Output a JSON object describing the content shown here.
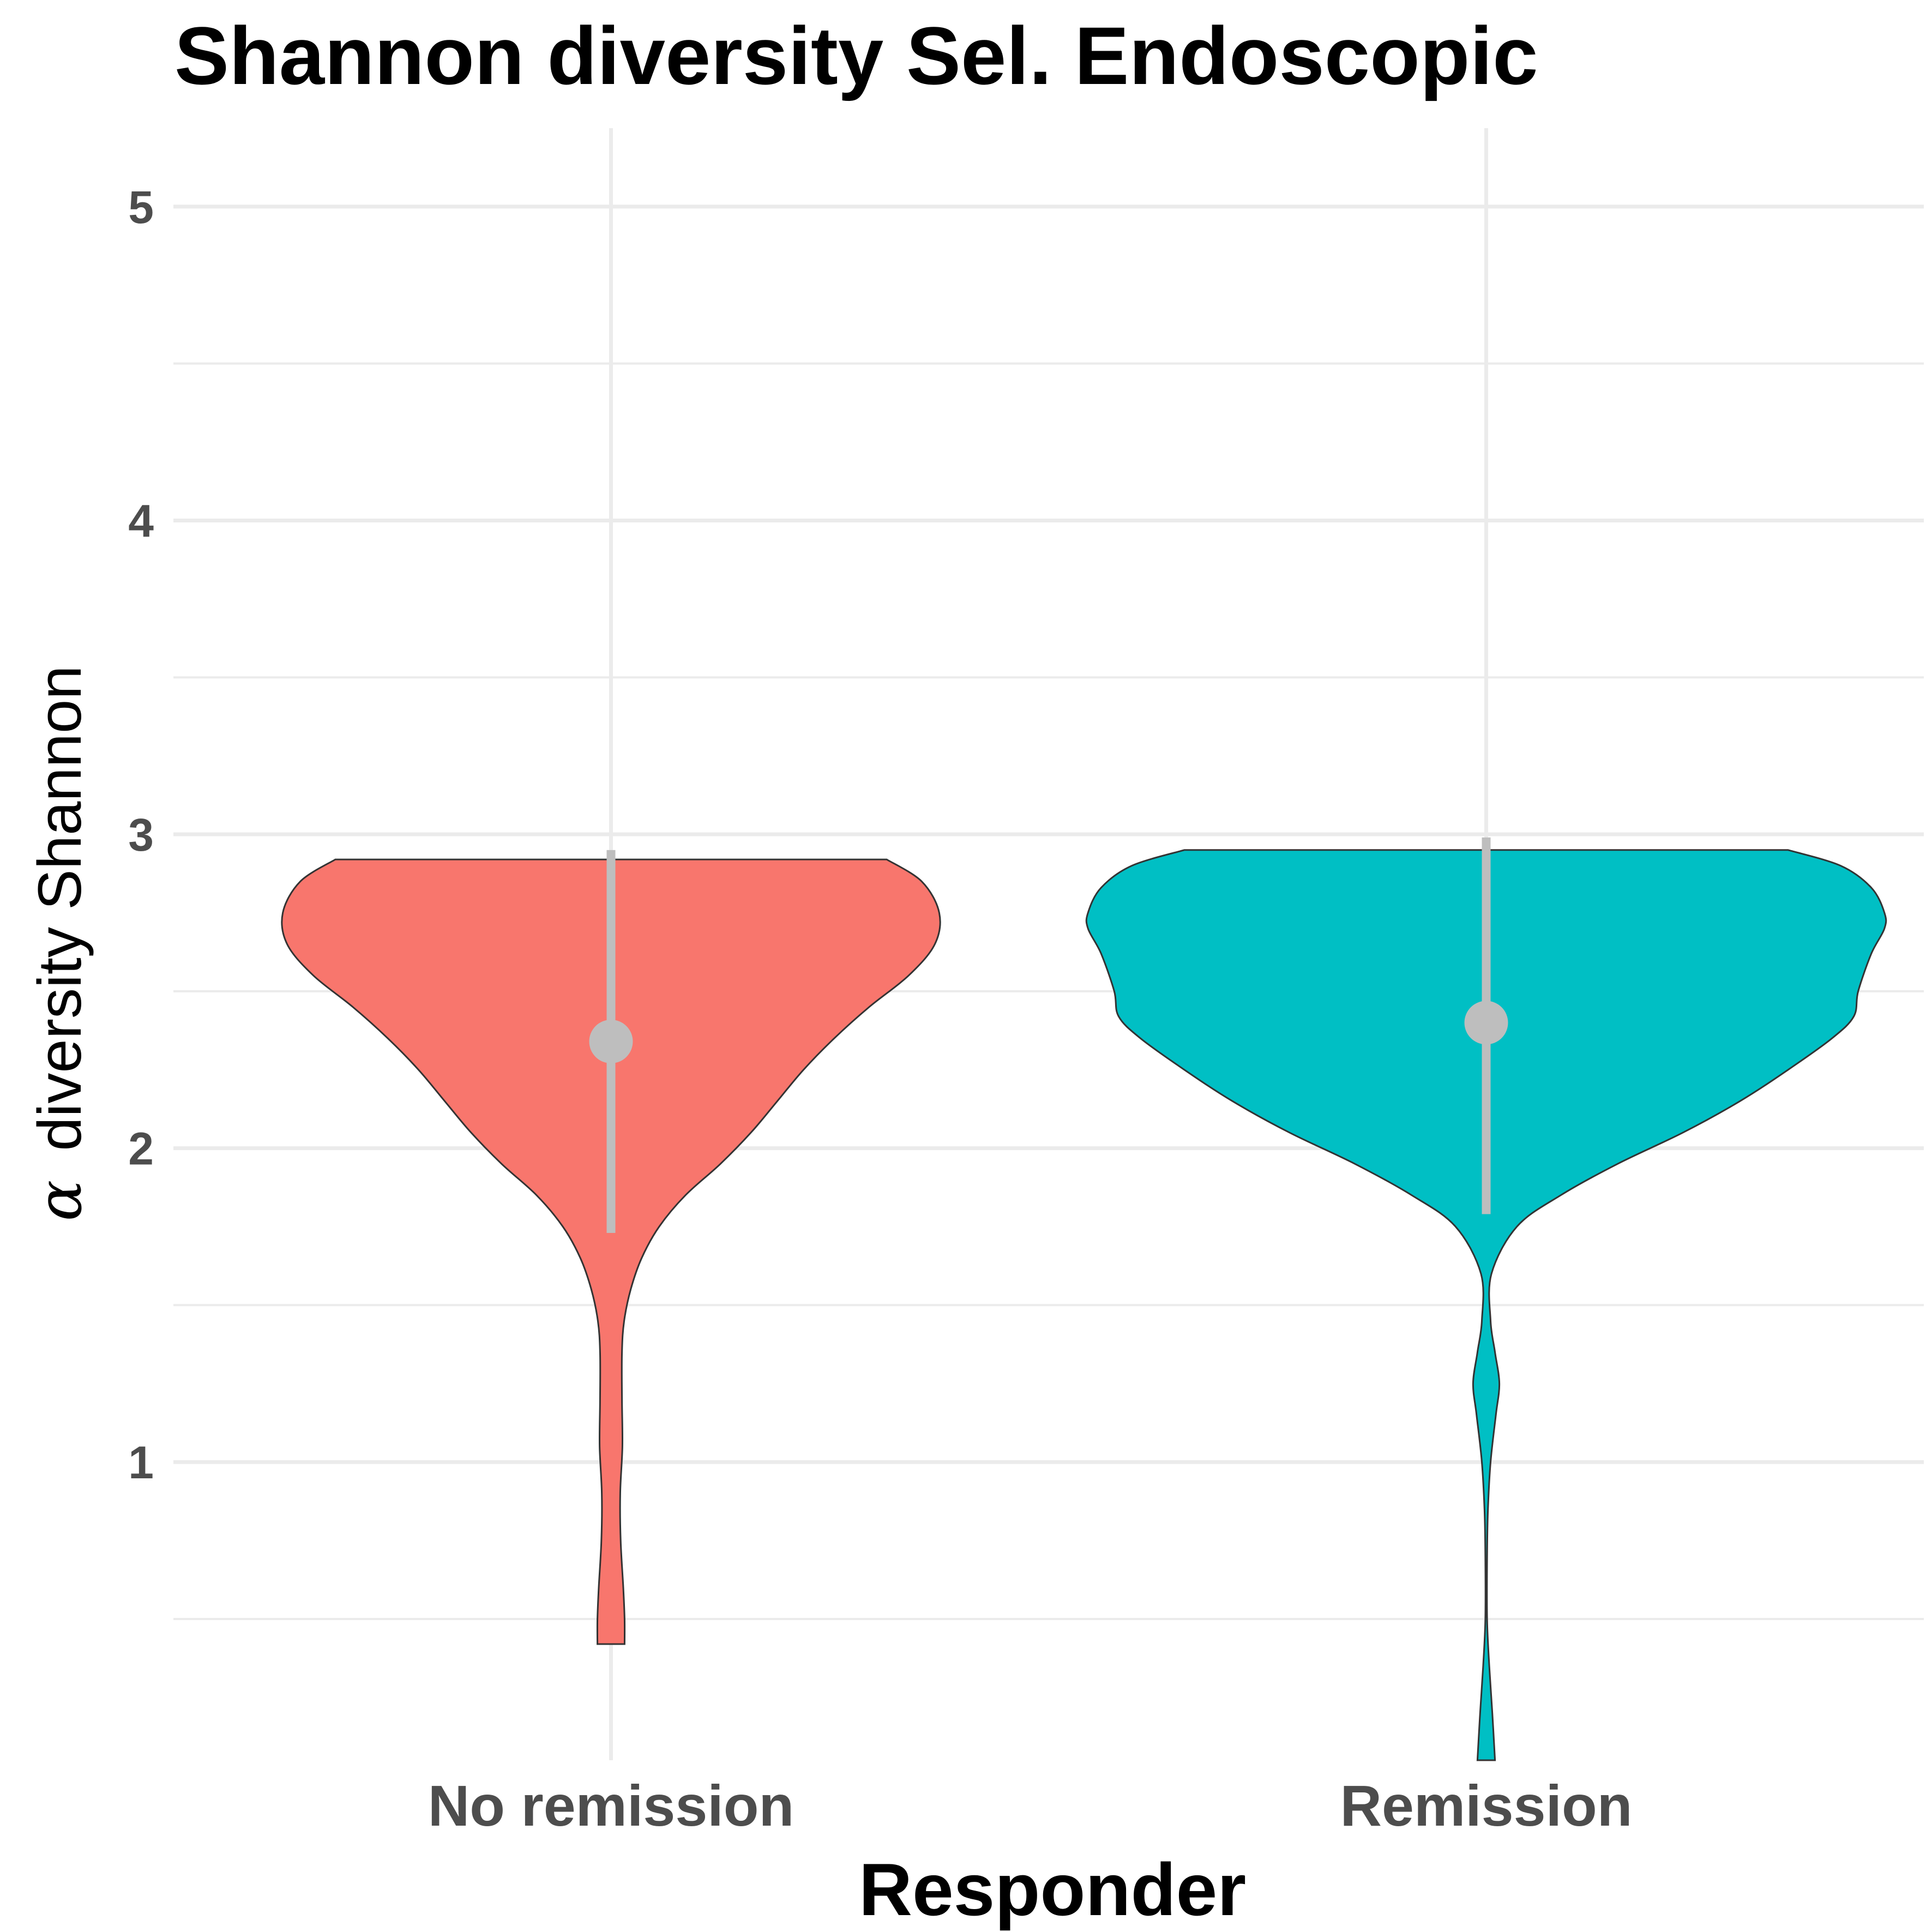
{
  "chart_data": {
    "type": "violin",
    "title": "Shannon diversity Sel. Endoscopic",
    "xlabel": "Responder",
    "ylabel_symbol": "α",
    "ylabel_text": "diversity Shannon",
    "categories": [
      "No remission",
      "Remission"
    ],
    "colors": [
      "#F8766D",
      "#00BFC4"
    ],
    "summary_color": "#BEBEBE",
    "grid": true,
    "ylim": [
      0.05,
      5.25
    ],
    "y_ticks": [
      1,
      2,
      3,
      4,
      5
    ],
    "y_tick_labels": [
      "1",
      "2",
      "3",
      "4",
      "5"
    ],
    "series": [
      {
        "values_min": 0.42,
        "values_max": 2.92,
        "mean": 2.34,
        "lower": 1.73,
        "upper": 2.95,
        "density_profile": [
          {
            "y": 2.92,
            "w": 0.63
          },
          {
            "y": 2.85,
            "w": 0.71
          },
          {
            "y": 2.75,
            "w": 0.75
          },
          {
            "y": 2.65,
            "w": 0.74
          },
          {
            "y": 2.55,
            "w": 0.68
          },
          {
            "y": 2.45,
            "w": 0.59
          },
          {
            "y": 2.35,
            "w": 0.51
          },
          {
            "y": 2.25,
            "w": 0.44
          },
          {
            "y": 2.15,
            "w": 0.38
          },
          {
            "y": 2.05,
            "w": 0.32
          },
          {
            "y": 1.95,
            "w": 0.25
          },
          {
            "y": 1.85,
            "w": 0.17
          },
          {
            "y": 1.75,
            "w": 0.11
          },
          {
            "y": 1.65,
            "w": 0.07
          },
          {
            "y": 1.55,
            "w": 0.045
          },
          {
            "y": 1.45,
            "w": 0.03
          },
          {
            "y": 1.35,
            "w": 0.025
          },
          {
            "y": 1.2,
            "w": 0.025
          },
          {
            "y": 1.05,
            "w": 0.026
          },
          {
            "y": 0.9,
            "w": 0.021
          },
          {
            "y": 0.75,
            "w": 0.022
          },
          {
            "y": 0.6,
            "w": 0.028
          },
          {
            "y": 0.5,
            "w": 0.031
          },
          {
            "y": 0.42,
            "w": 0.031
          }
        ]
      },
      {
        "values_min": 0.05,
        "values_max": 2.95,
        "mean": 2.4,
        "lower": 1.79,
        "upper": 2.99,
        "density_profile": [
          {
            "y": 2.95,
            "w": 0.69
          },
          {
            "y": 2.9,
            "w": 0.81
          },
          {
            "y": 2.83,
            "w": 0.88
          },
          {
            "y": 2.75,
            "w": 0.91
          },
          {
            "y": 2.7,
            "w": 0.91
          },
          {
            "y": 2.62,
            "w": 0.88
          },
          {
            "y": 2.5,
            "w": 0.85
          },
          {
            "y": 2.42,
            "w": 0.84
          },
          {
            "y": 2.35,
            "w": 0.79
          },
          {
            "y": 2.25,
            "w": 0.69
          },
          {
            "y": 2.15,
            "w": 0.58
          },
          {
            "y": 2.05,
            "w": 0.45
          },
          {
            "y": 1.95,
            "w": 0.3
          },
          {
            "y": 1.85,
            "w": 0.17
          },
          {
            "y": 1.75,
            "w": 0.07
          },
          {
            "y": 1.6,
            "w": 0.012
          },
          {
            "y": 1.45,
            "w": 0.01
          },
          {
            "y": 1.35,
            "w": 0.02
          },
          {
            "y": 1.25,
            "w": 0.03
          },
          {
            "y": 1.15,
            "w": 0.022
          },
          {
            "y": 1.0,
            "w": 0.01
          },
          {
            "y": 0.85,
            "w": 0.004
          },
          {
            "y": 0.7,
            "w": 0.002
          },
          {
            "y": 0.5,
            "w": 0.002
          },
          {
            "y": 0.35,
            "w": 0.007
          },
          {
            "y": 0.2,
            "w": 0.014
          },
          {
            "y": 0.05,
            "w": 0.02
          }
        ]
      }
    ]
  }
}
